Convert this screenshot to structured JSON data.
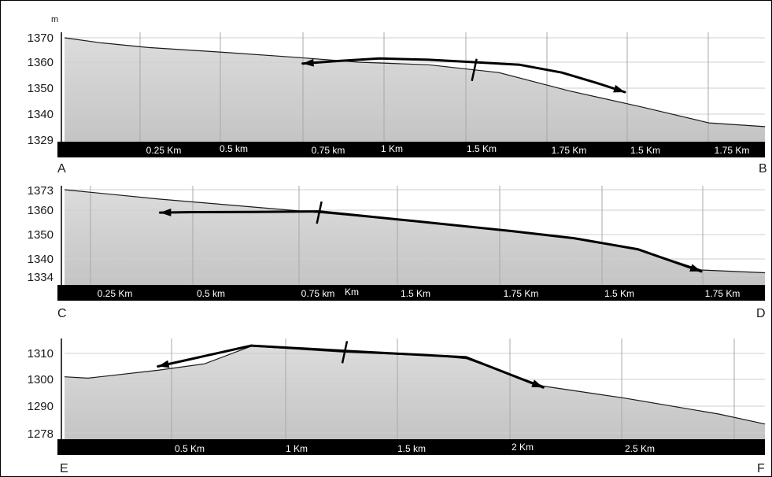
{
  "chart_data": [
    {
      "type": "area",
      "yunit": "m",
      "start_label": "A",
      "end_label": "B",
      "yticks": [
        1370,
        1360,
        1350,
        1340,
        1329
      ],
      "ylim": [
        1329,
        1370
      ],
      "xticks": [
        "0.25 Km",
        "0.5 km",
        "0.75 km",
        "1 Km",
        "1.5 Km",
        "1.75 Km",
        "1.5 Km",
        "1.75 Km"
      ],
      "profile": [
        [
          0,
          1370
        ],
        [
          0.5,
          1368
        ],
        [
          1.2,
          1366
        ],
        [
          2.3,
          1364
        ],
        [
          3.3,
          1362
        ],
        [
          4.2,
          1360
        ],
        [
          5.2,
          1359
        ],
        [
          6.2,
          1356
        ],
        [
          7.2,
          1349
        ],
        [
          8.2,
          1343
        ],
        [
          9.2,
          1336.5
        ],
        [
          10,
          1335
        ]
      ],
      "arrows": [
        {
          "dir": "left",
          "path": [
            [
              5.85,
              1360
            ],
            [
              5.2,
              1361
            ],
            [
              4.5,
              1361.5
            ],
            [
              3.9,
              1360.5
            ],
            [
              3.4,
              1359.5
            ]
          ]
        },
        {
          "dir": "right",
          "path": [
            [
              5.85,
              1360
            ],
            [
              6.5,
              1359
            ],
            [
              7.1,
              1356
            ],
            [
              7.6,
              1352
            ],
            [
              8.0,
              1348.5
            ]
          ]
        }
      ],
      "mark_x": 5.85
    },
    {
      "type": "area",
      "start_label": "C",
      "end_label": "D",
      "yticks": [
        1373,
        1360,
        1350,
        1340,
        1334
      ],
      "ylim": [
        1334,
        1373
      ],
      "xticks": [
        "0.25 Km",
        "0.5 km",
        "0.75 km",
        "Km",
        "1.5 Km",
        "1.75 Km",
        "1.5 Km",
        "1.75 Km"
      ],
      "profile": [
        [
          0,
          1373
        ],
        [
          1.5,
          1367
        ],
        [
          4.0,
          1359
        ],
        [
          5.5,
          1355.5
        ],
        [
          7.0,
          1351.5
        ],
        [
          8.0,
          1348.5
        ],
        [
          9.0,
          1344
        ],
        [
          10,
          1336
        ],
        [
          11.0,
          1335
        ]
      ],
      "arrows": [
        {
          "dir": "left",
          "path": [
            [
              4.0,
              1359.5
            ],
            [
              3.0,
              1359.3
            ],
            [
              2.0,
              1359.2
            ],
            [
              1.5,
              1359
            ]
          ]
        },
        {
          "dir": "right",
          "path": [
            [
              4.0,
              1359.5
            ],
            [
              5.5,
              1355.5
            ],
            [
              7.0,
              1351.5
            ],
            [
              8.0,
              1348.5
            ],
            [
              9.0,
              1344
            ],
            [
              10.0,
              1335.5
            ]
          ]
        }
      ],
      "mark_x": 4.0
    },
    {
      "type": "area",
      "start_label": "E",
      "end_label": "F",
      "yticks": [
        1310,
        1300,
        1290,
        1278
      ],
      "ylim": [
        1278,
        1310
      ],
      "xticks": [
        "0.5 Km",
        "1 Km",
        "1.5 km",
        "2 Km",
        "2.5 Km"
      ],
      "profile": [
        [
          0,
          1301
        ],
        [
          0.1,
          1300.5
        ],
        [
          0.4,
          1303.5
        ],
        [
          0.6,
          1306
        ],
        [
          0.8,
          1312.8
        ],
        [
          1.2,
          1310.5
        ],
        [
          1.6,
          1309
        ],
        [
          1.72,
          1308
        ],
        [
          2.05,
          1297.5
        ],
        [
          2.4,
          1293
        ],
        [
          2.8,
          1286.5
        ],
        [
          3.0,
          1282
        ]
      ],
      "arrows": [
        {
          "dir": "left",
          "path": [
            [
              0.8,
              1313
            ],
            [
              0.55,
              1308
            ],
            [
              0.4,
              1305
            ]
          ]
        },
        {
          "dir": "right",
          "path": [
            [
              0.8,
              1313
            ],
            [
              1.2,
              1311
            ],
            [
              1.72,
              1308.5
            ],
            [
              2.05,
              1297
            ]
          ]
        }
      ],
      "mark_x": 1.2
    }
  ]
}
